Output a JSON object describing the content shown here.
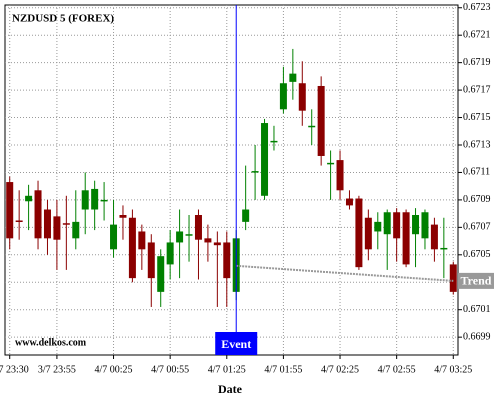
{
  "chart_data": {
    "type": "candlestick",
    "title": "NZDUSD 5 (FOREX)",
    "watermark": "www.delkos.com",
    "xlabel": "Date",
    "categories": [
      "3/7 23:30",
      null,
      null,
      null,
      null,
      "3/7 23:55",
      null,
      null,
      null,
      null,
      null,
      "4/7 00:25",
      null,
      null,
      null,
      null,
      null,
      "4/7 00:55",
      null,
      null,
      null,
      null,
      null,
      "4/7 01:25",
      null,
      null,
      null,
      null,
      null,
      "4/7 01:55",
      null,
      null,
      null,
      null,
      null,
      "4/7 02:25",
      null,
      null,
      null,
      null,
      null,
      "4/7 02:55",
      null,
      null,
      null,
      null,
      null,
      "4/7 03:25"
    ],
    "open": [
      0.67103,
      0.67075,
      0.67089,
      0.67097,
      0.67083,
      0.67078,
      0.67073,
      0.67062,
      0.67083,
      0.67083,
      0.6709,
      0.67054,
      0.67079,
      0.67077,
      0.67067,
      0.67059,
      0.67023,
      0.67043,
      0.67059,
      0.67065,
      0.67079,
      0.67062,
      0.67059,
      0.67059,
      0.67023,
      0.67074,
      0.6711,
      0.67093,
      0.67133,
      0.67156,
      0.67176,
      0.67175,
      0.67144,
      0.67173,
      0.67117,
      0.67119,
      0.67091,
      0.67091,
      0.67077,
      0.67067,
      0.67065,
      0.67081,
      0.67081,
      0.67065,
      0.67062,
      0.67072,
      0.67055,
      0.67043
    ],
    "high": [
      0.67107,
      0.67097,
      0.67101,
      0.67104,
      0.6709,
      0.6709,
      0.67093,
      0.67097,
      0.6711,
      0.67104,
      0.67103,
      0.6709,
      0.67086,
      0.67083,
      0.67072,
      0.67065,
      0.67054,
      0.67068,
      0.67083,
      0.67079,
      0.67083,
      0.67072,
      0.67067,
      0.67067,
      0.67068,
      0.67115,
      0.6713,
      0.67149,
      0.67144,
      0.67187,
      0.672,
      0.67191,
      0.67156,
      0.6718,
      0.67126,
      0.67126,
      0.67097,
      0.67093,
      0.67083,
      0.67081,
      0.67083,
      0.67084,
      0.67083,
      0.67084,
      0.67083,
      0.67077,
      0.67077,
      0.67045
    ],
    "low": [
      0.67054,
      0.67061,
      0.67068,
      0.67054,
      0.6705,
      0.67039,
      0.67039,
      0.67054,
      0.67065,
      0.67068,
      0.67075,
      0.67048,
      0.67061,
      0.6703,
      0.67039,
      0.67012,
      0.67012,
      0.67032,
      0.67033,
      0.67045,
      0.67032,
      0.67045,
      0.67012,
      0.67012,
      0.67017,
      0.67068,
      0.6709,
      0.6709,
      0.67126,
      0.67153,
      0.67163,
      0.67144,
      0.6713,
      0.67115,
      0.6709,
      0.6709,
      0.67083,
      0.67039,
      0.67046,
      0.67054,
      0.67039,
      0.67045,
      0.67041,
      0.67041,
      0.67054,
      0.67045,
      0.67033,
      0.67021
    ],
    "close": [
      0.67062,
      0.67074,
      0.67093,
      0.67062,
      0.67062,
      0.67061,
      0.67072,
      0.67074,
      0.67097,
      0.67098,
      0.6709,
      0.67072,
      0.67077,
      0.67033,
      0.67054,
      0.67033,
      0.67049,
      0.67059,
      0.67067,
      0.67065,
      0.67061,
      0.67059,
      0.67057,
      0.67033,
      0.67062,
      0.67083,
      0.67111,
      0.67146,
      0.67133,
      0.67175,
      0.67182,
      0.67155,
      0.67144,
      0.67122,
      0.67117,
      0.67097,
      0.67086,
      0.67041,
      0.67054,
      0.67074,
      0.67081,
      0.67062,
      0.67043,
      0.67079,
      0.67081,
      0.67054,
      0.67055,
      0.67023
    ],
    "up_color": "#008000",
    "down_color": "#8b0000",
    "ylim": [
      0.66977,
      0.67232
    ],
    "yticks": [
      0.6699,
      0.6701,
      0.6703,
      0.6705,
      0.6707,
      0.6709,
      0.6711,
      0.6713,
      0.6715,
      0.6717,
      0.6719,
      0.6721,
      0.6723
    ],
    "grid": true,
    "event": {
      "label": "Event",
      "at": 24,
      "color": "#0000ff"
    },
    "trend": {
      "label": "Trend",
      "x": [
        24,
        47
      ],
      "values": [
        0.67042,
        0.67031
      ],
      "color": "#999999"
    }
  }
}
